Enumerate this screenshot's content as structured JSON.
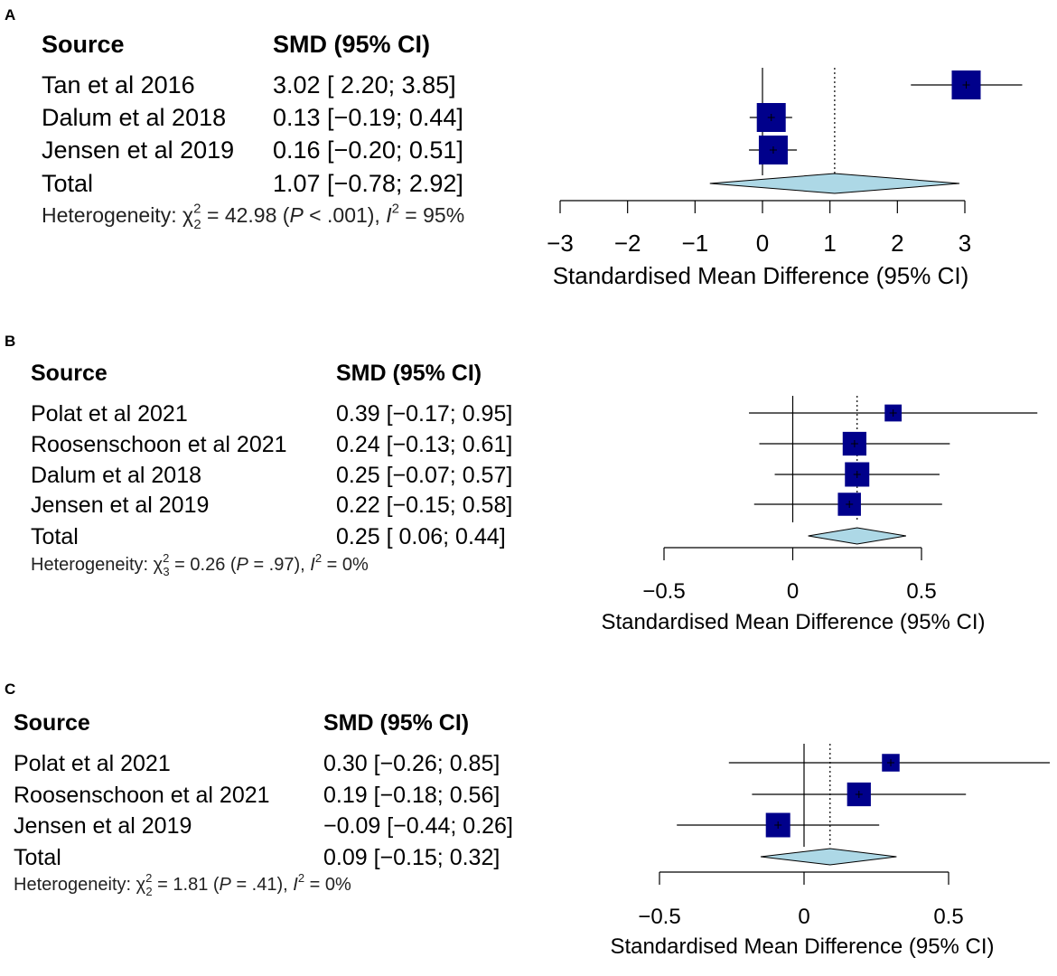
{
  "chart_data": [
    {
      "type": "forest",
      "panel_label": "A",
      "header": {
        "source": "Source",
        "estimate": "SMD (95% CI)"
      },
      "studies": [
        {
          "source": "Tan et al 2016",
          "ci_text": "3.02 [ 2.20; 3.85]",
          "smd": 3.02,
          "lower": 2.2,
          "upper": 3.85,
          "weight": 1.0
        },
        {
          "source": "Dalum et al 2018",
          "ci_text": "0.13 [−0.19; 0.44]",
          "smd": 0.13,
          "lower": -0.19,
          "upper": 0.44,
          "weight": 1.0
        },
        {
          "source": "Jensen et al 2019",
          "ci_text": "0.16 [−0.20; 0.51]",
          "smd": 0.16,
          "lower": -0.2,
          "upper": 0.51,
          "weight": 1.0
        }
      ],
      "total": {
        "source": "Total",
        "ci_text": "1.07 [−0.78; 2.92]",
        "smd": 1.07,
        "lower": -0.78,
        "upper": 2.92
      },
      "heterogeneity": {
        "label": "Heterogeneity: ",
        "chi": "χ",
        "df": "2",
        "stat": " = 42.98 (",
        "p_letter": "P",
        "p_text": " < .001), ",
        "i_letter": "I",
        "i_sup": "2",
        "i_text": " = 95%"
      },
      "xlim": [
        -3,
        3
      ],
      "ticks": [
        -3,
        -2,
        -1,
        0,
        1,
        2,
        3
      ],
      "tick_labels": [
        "−3",
        "−2",
        "−1",
        "0",
        "1",
        "2",
        "3"
      ],
      "xlabel": "Standardised Mean Difference (95% CI)"
    },
    {
      "type": "forest",
      "panel_label": "B",
      "header": {
        "source": "Source",
        "estimate": "SMD (95% CI)"
      },
      "studies": [
        {
          "source": "Polat et al 2021",
          "ci_text": "0.39 [−0.17; 0.95]",
          "smd": 0.39,
          "lower": -0.17,
          "upper": 0.95,
          "weight": 0.45
        },
        {
          "source": "Roosenschoon et al 2021",
          "ci_text": "0.24 [−0.13; 0.61]",
          "smd": 0.24,
          "lower": -0.13,
          "upper": 0.61,
          "weight": 0.95
        },
        {
          "source": "Dalum et al 2018",
          "ci_text": "0.25 [−0.07; 0.57]",
          "smd": 0.25,
          "lower": -0.07,
          "upper": 0.57,
          "weight": 1.0
        },
        {
          "source": "Jensen et al 2019",
          "ci_text": "0.22 [−0.15; 0.58]",
          "smd": 0.22,
          "lower": -0.15,
          "upper": 0.58,
          "weight": 0.9
        }
      ],
      "total": {
        "source": "Total",
        "ci_text": "0.25 [ 0.06; 0.44]",
        "smd": 0.25,
        "lower": 0.06,
        "upper": 0.44
      },
      "heterogeneity": {
        "label": "Heterogeneity: ",
        "chi": "χ",
        "df": "3",
        "stat": " = 0.26 (",
        "p_letter": "P",
        "p_text": " = .97), ",
        "i_letter": "I",
        "i_sup": "2",
        "i_text": " = 0%"
      },
      "xlim": [
        -0.5,
        0.5
      ],
      "ticks": [
        -0.5,
        0,
        0.5
      ],
      "tick_labels": [
        "−0.5",
        "0",
        "0.5"
      ],
      "xlabel": "Standardised Mean Difference (95% CI)"
    },
    {
      "type": "forest",
      "panel_label": "C",
      "header": {
        "source": "Source",
        "estimate": "SMD (95% CI)"
      },
      "studies": [
        {
          "source": "Polat et al 2021",
          "ci_text": "0.30 [−0.26; 0.85]",
          "smd": 0.3,
          "lower": -0.26,
          "upper": 0.85,
          "weight": 0.5
        },
        {
          "source": "Roosenschoon et al 2021",
          "ci_text": "0.19 [−0.18; 0.56]",
          "smd": 0.19,
          "lower": -0.18,
          "upper": 0.56,
          "weight": 0.95
        },
        {
          "source": "Jensen et al 2019",
          "ci_text": "−0.09 [−0.44; 0.26]",
          "smd": -0.09,
          "lower": -0.44,
          "upper": 0.26,
          "weight": 1.0
        }
      ],
      "total": {
        "source": "Total",
        "ci_text": "0.09 [−0.15; 0.32]",
        "smd": 0.09,
        "lower": -0.15,
        "upper": 0.32
      },
      "heterogeneity": {
        "label": "Heterogeneity: ",
        "chi": "χ",
        "df": "2",
        "stat": " = 1.81 (",
        "p_letter": "P",
        "p_text": " = .41), ",
        "i_letter": "I",
        "i_sup": "2",
        "i_text": " = 0%"
      },
      "xlim": [
        -0.5,
        0.5
      ],
      "ticks": [
        -0.5,
        0,
        0.5
      ],
      "tick_labels": [
        "−0.5",
        "0",
        "0.5"
      ],
      "xlabel": "Standardised Mean Difference (95% CI)"
    }
  ],
  "colors": {
    "square": "#00008b",
    "diamond": "#add8e6",
    "line": "#000000"
  }
}
